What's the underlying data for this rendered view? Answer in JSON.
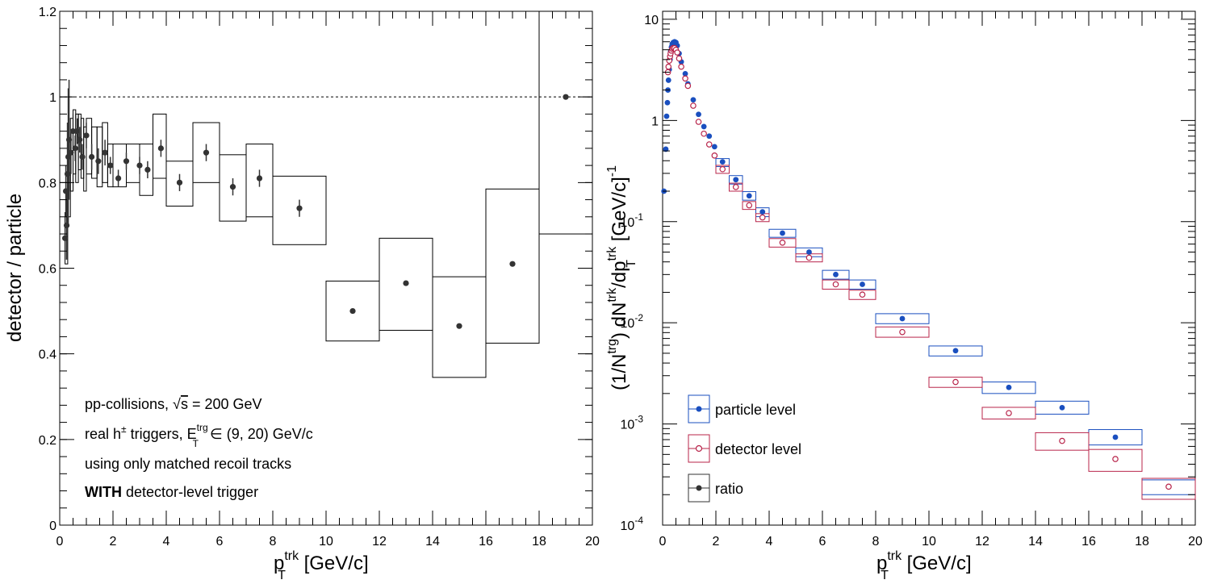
{
  "chart_data": [
    {
      "type": "scatter",
      "xlabel": {
        "main": "p",
        "sup": "trk",
        "sub": "T",
        "unit": " [GeV/c]"
      },
      "ylabel": "detector / particle",
      "xlim": [
        0,
        20
      ],
      "ylim": [
        0,
        1.2
      ],
      "xticks": [
        "0",
        "2",
        "4",
        "6",
        "8",
        "10",
        "12",
        "14",
        "16",
        "18",
        "20"
      ],
      "yticks": [
        "0",
        "0.2",
        "0.4",
        "0.6",
        "0.8",
        "1",
        "1.2"
      ],
      "reference_line": 1,
      "annotations": {
        "line1_pre": "pp-collisions, ",
        "line1_sqrt": "√",
        "line1_s": "s",
        "line1_post": " = 200 GeV",
        "line2_pre": "real h",
        "line2_pm": "±",
        "line2_mid": " triggers, E",
        "line2_sup": "trg",
        "line2_sub": "T",
        "line2_post": " ∈ (9, 20) GeV/c",
        "line3": "using only matched recoil tracks",
        "line4_bold": "WITH",
        "line4_rest": " detector-level trigger"
      },
      "series": [
        {
          "points": [
            {
              "x": 0.2,
              "y": 0.67,
              "err": 0.05
            },
            {
              "x": 0.23,
              "y": 0.78,
              "err": 0.06
            },
            {
              "x": 0.26,
              "y": 0.7,
              "err": 0.08
            },
            {
              "x": 0.29,
              "y": 0.82,
              "err": 0.12
            },
            {
              "x": 0.32,
              "y": 0.86,
              "err": 0.16
            },
            {
              "x": 0.35,
              "y": 0.9,
              "err": 0.14
            },
            {
              "x": 0.42,
              "y": 0.87,
              "err": 0.05
            },
            {
              "x": 0.5,
              "y": 0.92,
              "err": 0.04
            },
            {
              "x": 0.58,
              "y": 0.88,
              "err": 0.03
            },
            {
              "x": 0.66,
              "y": 0.92,
              "err": 0.03
            },
            {
              "x": 0.75,
              "y": 0.9,
              "err": 0.03
            },
            {
              "x": 0.85,
              "y": 0.86,
              "err": 0.03
            },
            {
              "x": 1.0,
              "y": 0.91,
              "err": 0.03
            },
            {
              "x": 1.2,
              "y": 0.86,
              "err": 0.03
            },
            {
              "x": 1.45,
              "y": 0.85,
              "err": 0.03
            },
            {
              "x": 1.7,
              "y": 0.87,
              "err": 0.03
            },
            {
              "x": 1.9,
              "y": 0.84,
              "err": 0.02
            },
            {
              "x": 2.2,
              "y": 0.81,
              "err": 0.02
            },
            {
              "x": 2.5,
              "y": 0.85,
              "err": 0.02
            },
            {
              "x": 3.0,
              "y": 0.84,
              "err": 0.02
            },
            {
              "x": 3.3,
              "y": 0.83,
              "err": 0.02
            },
            {
              "x": 3.8,
              "y": 0.88,
              "err": 0.02
            },
            {
              "x": 4.5,
              "y": 0.8,
              "err": 0.02
            },
            {
              "x": 5.5,
              "y": 0.87,
              "err": 0.02
            },
            {
              "x": 6.5,
              "y": 0.79,
              "err": 0.02
            },
            {
              "x": 7.5,
              "y": 0.81,
              "err": 0.02
            },
            {
              "x": 9.0,
              "y": 0.74,
              "err": 0.02
            },
            {
              "x": 11,
              "y": 0.5,
              "err": 0.01
            },
            {
              "x": 13,
              "y": 0.565,
              "err": 0.01
            },
            {
              "x": 15,
              "y": 0.465,
              "err": 0.01
            },
            {
              "x": 17,
              "y": 0.61,
              "err": 0.01
            },
            {
              "x": 19,
              "y": 1.0,
              "err": 0.01
            }
          ],
          "boxes": [
            {
              "x0": 0.2,
              "x1": 0.3,
              "y0": 0.61,
              "y1": 0.73
            },
            {
              "x0": 0.3,
              "x1": 0.4,
              "y0": 0.72,
              "y1": 0.9
            },
            {
              "x0": 0.4,
              "x1": 0.5,
              "y0": 0.78,
              "y1": 0.95
            },
            {
              "x0": 0.5,
              "x1": 0.6,
              "y0": 0.82,
              "y1": 0.97
            },
            {
              "x0": 0.6,
              "x1": 0.7,
              "y0": 0.8,
              "y1": 0.96
            },
            {
              "x0": 0.7,
              "x1": 0.8,
              "y0": 0.83,
              "y1": 0.96
            },
            {
              "x0": 0.8,
              "x1": 0.9,
              "y0": 0.81,
              "y1": 0.95
            },
            {
              "x0": 0.9,
              "x1": 1.0,
              "y0": 0.78,
              "y1": 0.93
            },
            {
              "x0": 1.0,
              "x1": 1.2,
              "y0": 0.82,
              "y1": 0.95
            },
            {
              "x0": 1.2,
              "x1": 1.4,
              "y0": 0.81,
              "y1": 0.93
            },
            {
              "x0": 1.4,
              "x1": 1.6,
              "y0": 0.79,
              "y1": 0.93
            },
            {
              "x0": 1.6,
              "x1": 1.8,
              "y0": 0.8,
              "y1": 0.94
            },
            {
              "x0": 1.8,
              "x1": 2.0,
              "y0": 0.79,
              "y1": 0.89
            },
            {
              "x0": 2.0,
              "x1": 2.5,
              "y0": 0.79,
              "y1": 0.89
            },
            {
              "x0": 2.5,
              "x1": 3.0,
              "y0": 0.8,
              "y1": 0.89
            },
            {
              "x0": 3.0,
              "x1": 3.5,
              "y0": 0.77,
              "y1": 0.89
            },
            {
              "x0": 3.5,
              "x1": 4.0,
              "y0": 0.81,
              "y1": 0.96
            },
            {
              "x0": 4.0,
              "x1": 5.0,
              "y0": 0.745,
              "y1": 0.85
            },
            {
              "x0": 5.0,
              "x1": 6.0,
              "y0": 0.8,
              "y1": 0.94
            },
            {
              "x0": 6.0,
              "x1": 7.0,
              "y0": 0.71,
              "y1": 0.865
            },
            {
              "x0": 7.0,
              "x1": 8.0,
              "y0": 0.72,
              "y1": 0.89
            },
            {
              "x0": 8.0,
              "x1": 10.0,
              "y0": 0.655,
              "y1": 0.815
            },
            {
              "x0": 10,
              "x1": 12,
              "y0": 0.43,
              "y1": 0.57
            },
            {
              "x0": 12,
              "x1": 14,
              "y0": 0.455,
              "y1": 0.67
            },
            {
              "x0": 14,
              "x1": 16,
              "y0": 0.345,
              "y1": 0.58
            },
            {
              "x0": 16,
              "x1": 18,
              "y0": 0.425,
              "y1": 0.785
            },
            {
              "x0": 18,
              "x1": 20,
              "y0": 0.68,
              "y1": 1.2
            }
          ]
        }
      ]
    },
    {
      "type": "scatter",
      "xlabel": {
        "main": "p",
        "sup": "trk",
        "sub": "T",
        "unit": " [GeV/c]"
      },
      "ylabel": {
        "p1": "(1/N",
        "p1sup": "trg",
        "p2": ") dN",
        "p2sup": "trk",
        "p3": "/dp",
        "p3sup": "trk",
        "p3sub": "T",
        "p4": " [GeV/c]",
        "p4sup": "-1"
      },
      "xlim": [
        0,
        20
      ],
      "ylim": [
        0.0001,
        12
      ],
      "log_y": true,
      "xticks": [
        "0",
        "2",
        "4",
        "6",
        "8",
        "10",
        "12",
        "14",
        "16",
        "18",
        "20"
      ],
      "yticks": [
        {
          "value": 10,
          "base": "10",
          "exp": ""
        },
        {
          "value": 1,
          "base": "1",
          "exp": ""
        },
        {
          "value": 0.1,
          "base": "10",
          "exp": "-1"
        },
        {
          "value": 0.01,
          "base": "10",
          "exp": "-2"
        },
        {
          "value": 0.001,
          "base": "10",
          "exp": "-3"
        },
        {
          "value": 0.0001,
          "base": "10",
          "exp": "-4"
        }
      ],
      "legend": {
        "position": "bottom-left",
        "entries": [
          "particle level",
          "detector level",
          "ratio"
        ]
      },
      "colors": {
        "particle": "#1a4fbf",
        "detector": "#b8244a",
        "ratio": "#333333"
      },
      "series": [
        {
          "name": "particle level",
          "points": [
            [
              0.05,
              0.2
            ],
            [
              0.12,
              0.52
            ],
            [
              0.15,
              1.1
            ],
            [
              0.18,
              1.5
            ],
            [
              0.2,
              2.0
            ],
            [
              0.22,
              2.5
            ],
            [
              0.25,
              3.2
            ],
            [
              0.28,
              4.0
            ],
            [
              0.3,
              4.8
            ],
            [
              0.33,
              5.3
            ],
            [
              0.36,
              5.7
            ],
            [
              0.4,
              5.9
            ],
            [
              0.45,
              6.0
            ],
            [
              0.5,
              5.9
            ],
            [
              0.55,
              5.5
            ],
            [
              0.62,
              4.6
            ],
            [
              0.7,
              3.8
            ],
            [
              0.85,
              2.9
            ],
            [
              0.95,
              2.3
            ],
            [
              1.15,
              1.6
            ],
            [
              1.35,
              1.15
            ],
            [
              1.55,
              0.87
            ],
            [
              1.75,
              0.7
            ],
            [
              1.95,
              0.55
            ],
            [
              2.25,
              0.39
            ],
            [
              2.75,
              0.26
            ],
            [
              3.25,
              0.18
            ],
            [
              3.75,
              0.125
            ],
            [
              4.5,
              0.077
            ],
            [
              5.5,
              0.05
            ],
            [
              6.5,
              0.03
            ],
            [
              7.5,
              0.024
            ],
            [
              9,
              0.011
            ],
            [
              11,
              0.0053
            ],
            [
              13,
              0.0023
            ],
            [
              15,
              0.00145
            ],
            [
              17,
              0.00074
            ],
            [
              19,
              0.00024
            ]
          ],
          "boxes": [
            {
              "x0": 2.0,
              "x1": 2.5,
              "y0": 0.35,
              "y1": 0.42
            },
            {
              "x0": 2.5,
              "x1": 3.0,
              "y0": 0.235,
              "y1": 0.285
            },
            {
              "x0": 3.0,
              "x1": 3.5,
              "y0": 0.163,
              "y1": 0.198
            },
            {
              "x0": 3.5,
              "x1": 4.0,
              "y0": 0.112,
              "y1": 0.137
            },
            {
              "x0": 4.0,
              "x1": 5.0,
              "y0": 0.07,
              "y1": 0.084
            },
            {
              "x0": 5.0,
              "x1": 6.0,
              "y0": 0.045,
              "y1": 0.055
            },
            {
              "x0": 6.0,
              "x1": 7.0,
              "y0": 0.027,
              "y1": 0.033
            },
            {
              "x0": 7.0,
              "x1": 8.0,
              "y0": 0.0215,
              "y1": 0.0265
            },
            {
              "x0": 8.0,
              "x1": 10.0,
              "y0": 0.0098,
              "y1": 0.0123
            },
            {
              "x0": 10,
              "x1": 12,
              "y0": 0.0047,
              "y1": 0.0059
            },
            {
              "x0": 12,
              "x1": 14,
              "y0": 0.002,
              "y1": 0.0026
            },
            {
              "x0": 14,
              "x1": 16,
              "y0": 0.00125,
              "y1": 0.00168
            },
            {
              "x0": 16,
              "x1": 18,
              "y0": 0.00062,
              "y1": 0.00088
            },
            {
              "x0": 18,
              "x1": 20,
              "y0": 0.0002,
              "y1": 0.00028
            }
          ]
        },
        {
          "name": "detector level",
          "points": [
            [
              0.2,
              3.0
            ],
            [
              0.22,
              3.4
            ],
            [
              0.25,
              3.9
            ],
            [
              0.28,
              4.3
            ],
            [
              0.3,
              4.6
            ],
            [
              0.33,
              4.9
            ],
            [
              0.36,
              5.1
            ],
            [
              0.4,
              5.2
            ],
            [
              0.45,
              5.2
            ],
            [
              0.5,
              5.0
            ],
            [
              0.55,
              4.7
            ],
            [
              0.62,
              4.1
            ],
            [
              0.7,
              3.4
            ],
            [
              0.85,
              2.6
            ],
            [
              0.95,
              2.2
            ],
            [
              1.15,
              1.4
            ],
            [
              1.35,
              0.97
            ],
            [
              1.55,
              0.74
            ],
            [
              1.75,
              0.58
            ],
            [
              1.95,
              0.45
            ],
            [
              2.25,
              0.33
            ],
            [
              2.75,
              0.22
            ],
            [
              3.25,
              0.145
            ],
            [
              3.75,
              0.11
            ],
            [
              4.5,
              0.062
            ],
            [
              5.5,
              0.044
            ],
            [
              6.5,
              0.024
            ],
            [
              7.5,
              0.019
            ],
            [
              9,
              0.0081
            ],
            [
              11,
              0.0026
            ],
            [
              13,
              0.00128
            ],
            [
              15,
              0.00068
            ],
            [
              17,
              0.00045
            ],
            [
              19,
              0.00024
            ]
          ],
          "boxes": [
            {
              "x0": 2.0,
              "x1": 2.5,
              "y0": 0.3,
              "y1": 0.36
            },
            {
              "x0": 2.5,
              "x1": 3.0,
              "y0": 0.2,
              "y1": 0.24
            },
            {
              "x0": 3.0,
              "x1": 3.5,
              "y0": 0.132,
              "y1": 0.158
            },
            {
              "x0": 3.5,
              "x1": 4.0,
              "y0": 0.1,
              "y1": 0.12
            },
            {
              "x0": 4.0,
              "x1": 5.0,
              "y0": 0.056,
              "y1": 0.068
            },
            {
              "x0": 5.0,
              "x1": 6.0,
              "y0": 0.04,
              "y1": 0.048
            },
            {
              "x0": 6.0,
              "x1": 7.0,
              "y0": 0.0215,
              "y1": 0.0265
            },
            {
              "x0": 7.0,
              "x1": 8.0,
              "y0": 0.017,
              "y1": 0.021
            },
            {
              "x0": 8.0,
              "x1": 10.0,
              "y0": 0.0072,
              "y1": 0.0091
            },
            {
              "x0": 10,
              "x1": 12,
              "y0": 0.0023,
              "y1": 0.0029
            },
            {
              "x0": 12,
              "x1": 14,
              "y0": 0.00112,
              "y1": 0.00146
            },
            {
              "x0": 14,
              "x1": 16,
              "y0": 0.00055,
              "y1": 0.00082
            },
            {
              "x0": 16,
              "x1": 18,
              "y0": 0.00034,
              "y1": 0.00056
            },
            {
              "x0": 18,
              "x1": 20,
              "y0": 0.00018,
              "y1": 0.00029
            }
          ]
        }
      ]
    }
  ]
}
